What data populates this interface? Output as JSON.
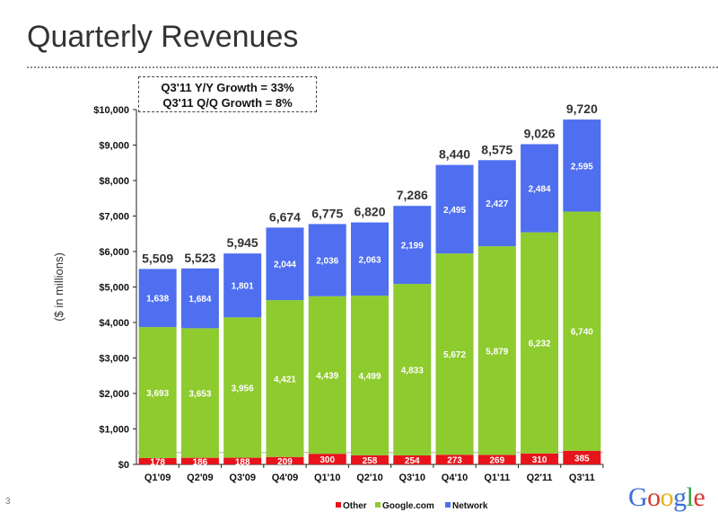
{
  "page": {
    "title": "Quarterly Revenues",
    "page_number": "3",
    "logo_text": "Google"
  },
  "callout": {
    "line1": "Q3'11 Y/Y Growth = 33%",
    "line2": "Q3'11 Q/Q Growth = 8%"
  },
  "chart_data": {
    "type": "bar",
    "stacked": true,
    "title": "Quarterly Revenues",
    "ylabel": "($ in millions)",
    "xlabel": "",
    "ylim": [
      0,
      10000
    ],
    "yticks": [
      0,
      1000,
      2000,
      3000,
      4000,
      5000,
      6000,
      7000,
      8000,
      9000,
      10000
    ],
    "ytick_labels": [
      "$0",
      "$1,000",
      "$2,000",
      "$3,000",
      "$4,000",
      "$5,000",
      "$6,000",
      "$7,000",
      "$8,000",
      "$9,000",
      "$10,000"
    ],
    "categories": [
      "Q1'09",
      "Q2'09",
      "Q3'09",
      "Q4'09",
      "Q1'10",
      "Q2'10",
      "Q3'10",
      "Q4'10",
      "Q1'11",
      "Q2'11",
      "Q3'11"
    ],
    "series": [
      {
        "name": "Other",
        "color": "#e8141c",
        "values": [
          178,
          186,
          188,
          209,
          300,
          258,
          254,
          273,
          269,
          310,
          385
        ],
        "labels": [
          "178",
          "186",
          "188",
          "209",
          "300",
          "258",
          "254",
          "273",
          "269",
          "310",
          "385"
        ]
      },
      {
        "name": "Google.com",
        "color": "#8ecb2e",
        "values": [
          3693,
          3653,
          3956,
          4421,
          4439,
          4499,
          4833,
          5672,
          5879,
          6232,
          6740
        ],
        "labels": [
          "3,693",
          "3,653",
          "3,956",
          "4,421",
          "4,439",
          "4,499",
          "4,833",
          "5,672",
          "5,879",
          "6,232",
          "6,740"
        ]
      },
      {
        "name": "Network",
        "color": "#4f6ff0",
        "values": [
          1638,
          1684,
          1801,
          2044,
          2036,
          2063,
          2199,
          2495,
          2427,
          2484,
          2595
        ],
        "labels": [
          "1,638",
          "1,684",
          "1,801",
          "2,044",
          "2,036",
          "2,063",
          "2,199",
          "2,495",
          "2,427",
          "2,484",
          "2,595"
        ]
      }
    ],
    "totals": [
      5509,
      5523,
      5945,
      6674,
      6775,
      6820,
      7286,
      8440,
      8575,
      9026,
      9720
    ],
    "total_labels": [
      "5,509",
      "5,523",
      "5,945",
      "6,674",
      "6,775",
      "6,820",
      "7,286",
      "8,440",
      "8,575",
      "9,026",
      "9,720"
    ],
    "legend": {
      "position": "bottom-center",
      "entries": [
        "Other",
        "Google.com",
        "Network"
      ]
    },
    "grid": false
  }
}
